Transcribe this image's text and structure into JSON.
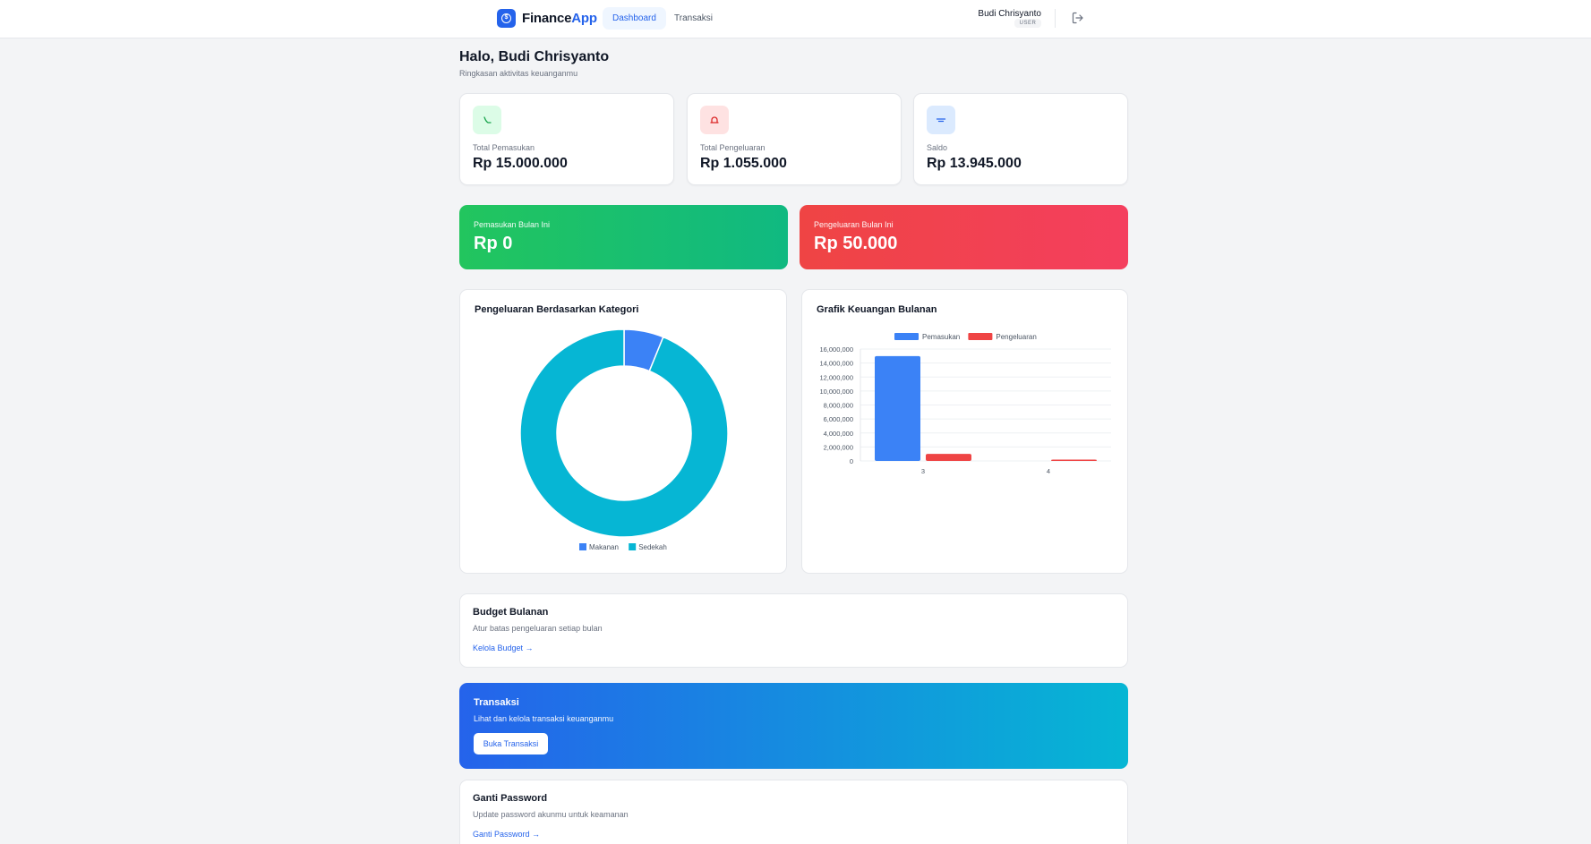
{
  "app": {
    "brand_part1": "Finance",
    "brand_part2": "App",
    "brand_color": "#2563eb"
  },
  "nav": {
    "tabs": [
      {
        "label": "Dashboard",
        "active": true
      },
      {
        "label": "Transaksi",
        "active": false
      }
    ]
  },
  "user": {
    "name": "Budi Chrisyanto",
    "role": "USER"
  },
  "greeting": {
    "title": "Halo, Budi Chrisyanto",
    "subtitle": "Ringkasan aktivitas keuanganmu"
  },
  "stats": [
    {
      "label": "Total Pemasukan",
      "value": "Rp 15.000.000",
      "icon": "income-icon",
      "color": "#16a34a"
    },
    {
      "label": "Total Pengeluaran",
      "value": "Rp 1.055.000",
      "icon": "expense-icon",
      "color": "#dc2626"
    },
    {
      "label": "Saldo",
      "value": "Rp 13.945.000",
      "icon": "wallet-icon",
      "color": "#2563eb"
    }
  ],
  "monthly": {
    "income_label": "Pemasukan Bulan Ini",
    "income_value": "Rp 0",
    "expense_label": "Pengeluaran Bulan Ini",
    "expense_value": "Rp 50.000"
  },
  "category_chart": {
    "title": "Pengeluaran Berdasarkan Kategori"
  },
  "monthly_chart": {
    "title": "Grafik Keuangan Bulanan"
  },
  "chart_data": [
    {
      "type": "pie",
      "title": "Pengeluaran Berdasarkan Kategori",
      "style": "doughnut",
      "legend": "bottom",
      "labels": [
        "Makanan",
        "Sedekah"
      ],
      "values": [
        65000,
        990000
      ],
      "colors": [
        "#3b82f6",
        "#06b6d4"
      ]
    },
    {
      "type": "bar",
      "title": "Grafik Keuangan Bulanan",
      "legend": "top",
      "categories": [
        "3",
        "4"
      ],
      "series": [
        {
          "name": "Pemasukan",
          "values": [
            15000000,
            0
          ],
          "color": "#3b82f6"
        },
        {
          "name": "Pengeluaran",
          "values": [
            1005000,
            50000
          ],
          "color": "#ef4444"
        }
      ],
      "ylim": [
        0,
        16000000
      ],
      "yticks": [
        "0",
        "2,000,000",
        "4,000,000",
        "6,000,000",
        "8,000,000",
        "10,000,000",
        "12,000,000",
        "14,000,000",
        "16,000,000"
      ],
      "grid": true
    }
  ],
  "budget": {
    "title": "Budget Bulanan",
    "desc": "Atur batas pengeluaran setiap bulan",
    "link": "Kelola Budget →"
  },
  "transaksi": {
    "title": "Transaksi",
    "desc": "Lihat dan kelola transaksi keuanganmu",
    "button": "Buka Transaksi"
  },
  "password": {
    "title": "Ganti Password",
    "desc": "Update password akunmu untuk keamanan",
    "link": "Ganti Password →"
  }
}
